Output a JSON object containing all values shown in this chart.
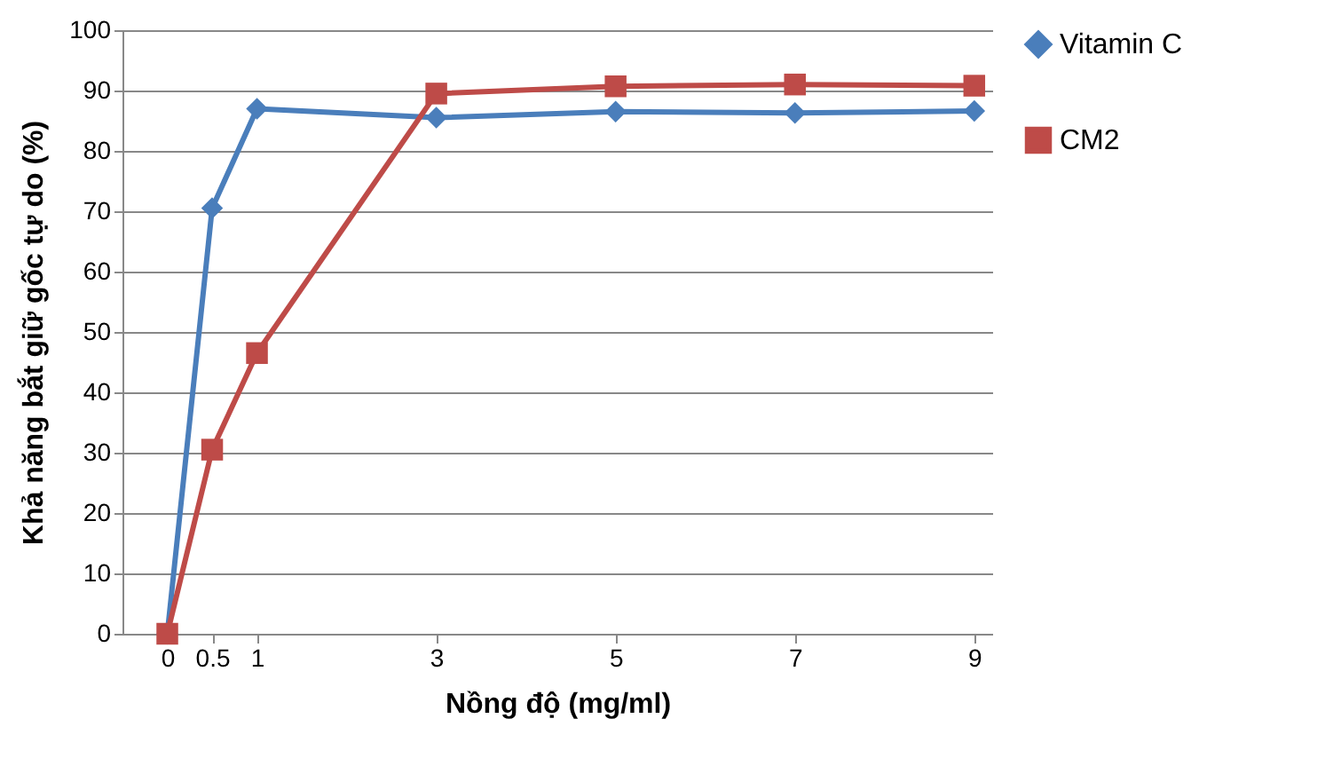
{
  "chart_data": {
    "type": "line",
    "xlabel": "Nồng độ (mg/ml)",
    "ylabel": "Khả năng bắt giữ gốc tự do (%)",
    "x": [
      0,
      0.5,
      1,
      3,
      5,
      7,
      9
    ],
    "series": [
      {
        "name": "Vitamin C",
        "color": "#4a7ebb",
        "marker": "diamond",
        "values": [
          0,
          70.5,
          87,
          85.5,
          86.5,
          86.3,
          86.6
        ]
      },
      {
        "name": "CM2",
        "color": "#be4b48",
        "marker": "square",
        "values": [
          0,
          30.5,
          46.5,
          89.5,
          90.7,
          91,
          90.8
        ]
      }
    ],
    "xlim": [
      -0.5,
      9.2
    ],
    "xticks": [
      0,
      0.5,
      1,
      3,
      5,
      7,
      9
    ],
    "ylim": [
      0,
      100
    ],
    "yticks": [
      0,
      10,
      20,
      30,
      40,
      50,
      60,
      70,
      80,
      90,
      100
    ],
    "grid": "y",
    "legend": "right",
    "line_style": "solid"
  }
}
